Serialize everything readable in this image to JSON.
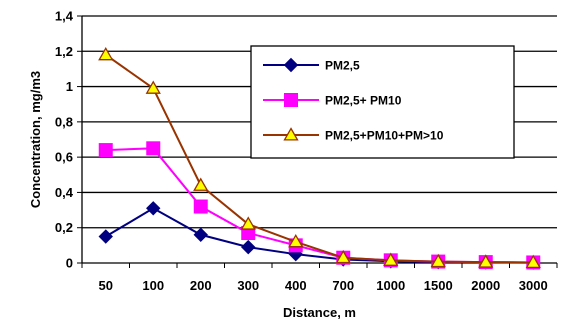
{
  "chart_data": {
    "type": "line",
    "title": "",
    "xlabel": "Distance, m",
    "ylabel": "Concentration, mg/m3",
    "categories": [
      "50",
      "100",
      "200",
      "300",
      "400",
      "700",
      "1000",
      "1500",
      "2000",
      "3000"
    ],
    "ylim": [
      0,
      1.4
    ],
    "yticks": [
      "0",
      "0,2",
      "0,4",
      "0,6",
      "0,8",
      "1",
      "1,2",
      "1,4"
    ],
    "grid": "horizontal",
    "legend_position": "top-right",
    "series": [
      {
        "name": "PM2,5",
        "values": [
          0.15,
          0.31,
          0.16,
          0.09,
          0.05,
          0.02,
          0.01,
          0.005,
          0.003,
          0.002
        ],
        "color": "#000080",
        "marker": "diamond",
        "marker_fill": "#000080"
      },
      {
        "name": "PM2,5+ PM10",
        "values": [
          0.64,
          0.65,
          0.32,
          0.17,
          0.1,
          0.03,
          0.015,
          0.008,
          0.005,
          0.003
        ],
        "color": "#ff00ff",
        "marker": "square",
        "marker_fill": "#ff00ff"
      },
      {
        "name": "PM2,5+PM10+PM>10",
        "values": [
          1.18,
          0.99,
          0.44,
          0.22,
          0.12,
          0.03,
          0.015,
          0.008,
          0.005,
          0.003
        ],
        "color": "#993300",
        "marker": "triangle",
        "marker_fill": "#ffff00"
      }
    ]
  }
}
